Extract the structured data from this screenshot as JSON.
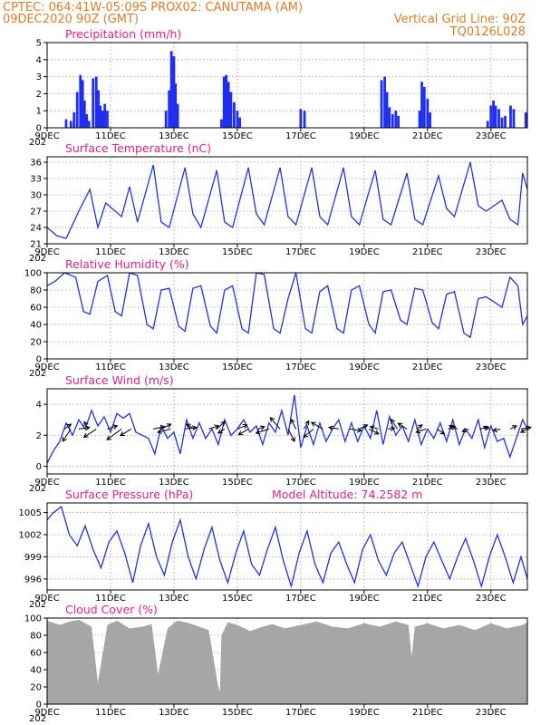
{
  "header": {
    "line1_left": "CPTEC:   064:41W-05:09S   PROX02: CANUTAMA (AM)",
    "line2_left": "09DEC2020 90Z (GMT)",
    "line2_right": "Vertical Grid Line: 90Z",
    "line3_right": "TQ0126L028"
  },
  "colors": {
    "header": "#e07b2c",
    "panel_title": "#e0228a",
    "series": "#2233dd",
    "precip_bar": "#1f2ef0",
    "cloud": "#a6a6a6"
  },
  "x_axis": {
    "day_start": 9,
    "day_end": 24.15,
    "tick_days": [
      9,
      11,
      13,
      15,
      17,
      19,
      21,
      23
    ],
    "tick_labels": [
      "9DEC",
      "11DEC",
      "13DEC",
      "15DEC",
      "17DEC",
      "19DEC",
      "21DEC",
      "23DEC"
    ],
    "year_label": "202"
  },
  "panels": {
    "precip": {
      "title": "Precipitation (mm/h)"
    },
    "temp": {
      "title": "Surface Temperature (nC)"
    },
    "rh": {
      "title": "Relative Humidity (%)"
    },
    "wind": {
      "title": "Surface Wind (m/s)"
    },
    "pres": {
      "title": "Surface Pressure (hPa)",
      "extra": "Model Altitude: 74.2582 m"
    },
    "cloud": {
      "title": "Cloud Cover (%)"
    }
  },
  "chart_data": [
    {
      "id": "precip",
      "type": "bar",
      "title": "Precipitation (mm/h)",
      "ylim": [
        0,
        5
      ],
      "yticks": [
        0,
        1,
        2,
        3,
        4,
        5
      ],
      "x_unit": "day of December 2020",
      "x": [
        9.6,
        9.75,
        9.85,
        9.95,
        10.05,
        10.12,
        10.18,
        10.25,
        10.32,
        10.45,
        10.55,
        10.62,
        10.68,
        10.75,
        10.82,
        10.9,
        12.75,
        12.85,
        12.92,
        13.0,
        13.05,
        13.12,
        14.5,
        14.58,
        14.65,
        14.72,
        14.8,
        14.9,
        15.0,
        15.08,
        17.0,
        17.12,
        19.55,
        19.65,
        19.72,
        19.8,
        19.9,
        20.0,
        20.08,
        20.75,
        20.82,
        20.9,
        21.0,
        21.08,
        22.9,
        23.0,
        23.08,
        23.15,
        23.25,
        23.35,
        23.45,
        23.62,
        23.72,
        24.1
      ],
      "values": [
        0.5,
        0.4,
        0.9,
        2.1,
        3.1,
        2.8,
        1.6,
        0.8,
        0.4,
        2.9,
        3.0,
        2.2,
        1.3,
        1.0,
        1.4,
        1.0,
        1.0,
        2.2,
        4.5,
        4.2,
        2.6,
        1.4,
        0.5,
        3.0,
        3.1,
        2.7,
        2.1,
        1.5,
        1.0,
        0.6,
        1.1,
        1.0,
        2.8,
        3.0,
        2.1,
        1.2,
        0.8,
        1.0,
        0.7,
        1.0,
        2.7,
        2.4,
        1.7,
        0.9,
        0.4,
        1.3,
        1.6,
        1.3,
        1.1,
        0.6,
        0.7,
        1.3,
        1.1,
        0.9
      ]
    },
    {
      "id": "temp",
      "type": "line",
      "title": "Surface Temperature (nC)",
      "ylim": [
        21,
        37
      ],
      "yticks": [
        21,
        24,
        27,
        30,
        33,
        36
      ],
      "x_unit": "day of December 2020",
      "x": [
        9.0,
        9.3,
        9.6,
        10.0,
        10.35,
        10.6,
        10.85,
        11.35,
        11.6,
        11.85,
        12.35,
        12.6,
        12.85,
        13.35,
        13.6,
        13.85,
        14.35,
        14.6,
        14.85,
        15.35,
        15.6,
        15.85,
        16.35,
        16.6,
        16.85,
        17.35,
        17.6,
        17.85,
        18.35,
        18.6,
        18.85,
        19.35,
        19.6,
        19.85,
        20.35,
        20.6,
        20.85,
        21.35,
        21.6,
        21.85,
        22.35,
        22.6,
        22.85,
        23.35,
        23.6,
        23.85,
        24.0,
        24.15
      ],
      "values": [
        24.0,
        22.5,
        22.0,
        27.0,
        31.0,
        24.0,
        28.5,
        26.0,
        31.5,
        25.0,
        35.5,
        25.0,
        24.0,
        35.0,
        26.5,
        24.0,
        34.5,
        25.0,
        24.0,
        35.0,
        26.5,
        24.5,
        35.0,
        26.0,
        24.5,
        35.0,
        26.0,
        24.5,
        35.0,
        26.0,
        24.5,
        34.5,
        25.5,
        24.5,
        34.0,
        25.5,
        24.5,
        33.5,
        27.5,
        26.0,
        36.0,
        28.0,
        27.0,
        29.0,
        25.5,
        24.5,
        34.0,
        31.0
      ]
    },
    {
      "id": "rh",
      "type": "line",
      "title": "Relative Humidity (%)",
      "ylim": [
        0,
        100
      ],
      "yticks": [
        0,
        20,
        40,
        60,
        80,
        100
      ],
      "x_unit": "day of December 2020",
      "x": [
        9.0,
        9.25,
        9.55,
        9.9,
        10.15,
        10.35,
        10.6,
        10.9,
        11.15,
        11.35,
        11.6,
        11.85,
        12.15,
        12.35,
        12.6,
        12.85,
        13.15,
        13.35,
        13.6,
        13.85,
        14.15,
        14.35,
        14.6,
        14.85,
        15.15,
        15.35,
        15.6,
        15.85,
        16.15,
        16.35,
        16.6,
        16.85,
        17.15,
        17.35,
        17.6,
        17.85,
        18.15,
        18.35,
        18.6,
        18.85,
        19.15,
        19.35,
        19.6,
        19.85,
        20.15,
        20.35,
        20.6,
        20.85,
        21.15,
        21.35,
        21.6,
        21.85,
        22.15,
        22.35,
        22.6,
        22.85,
        23.15,
        23.35,
        23.6,
        23.85,
        24.0,
        24.15
      ],
      "values": [
        85.0,
        90.0,
        100.0,
        95.0,
        55.0,
        52.0,
        90.0,
        97.0,
        55.0,
        50.0,
        100.0,
        97.0,
        40.0,
        35.0,
        80.0,
        82.0,
        38.0,
        32.0,
        82.0,
        85.0,
        38.0,
        30.0,
        80.0,
        85.0,
        35.0,
        30.0,
        100.0,
        98.0,
        35.0,
        30.0,
        70.0,
        100.0,
        35.0,
        30.0,
        78.0,
        85.0,
        35.0,
        30.0,
        80.0,
        85.0,
        40.0,
        30.0,
        78.0,
        80.0,
        45.0,
        40.0,
        82.0,
        80.0,
        42.0,
        35.0,
        75.0,
        78.0,
        30.0,
        25.0,
        70.0,
        72.0,
        65.0,
        60.0,
        95.0,
        85.0,
        40.0,
        50.0
      ]
    },
    {
      "id": "wind",
      "type": "line",
      "title": "Surface Wind (m/s)",
      "ylim": [
        -0.5,
        5
      ],
      "yticks": [
        0,
        2,
        4
      ],
      "x_unit": "day of December 2020",
      "x": [
        9.0,
        9.2,
        9.4,
        9.6,
        9.8,
        10.0,
        10.2,
        10.4,
        10.6,
        10.8,
        11.0,
        11.2,
        11.4,
        11.6,
        11.8,
        12.0,
        12.2,
        12.4,
        12.6,
        12.8,
        13.0,
        13.2,
        13.4,
        13.6,
        13.8,
        14.0,
        14.2,
        14.4,
        14.6,
        14.8,
        15.0,
        15.2,
        15.4,
        15.6,
        15.8,
        16.0,
        16.2,
        16.4,
        16.6,
        16.8,
        17.0,
        17.2,
        17.4,
        17.6,
        17.8,
        18.0,
        18.2,
        18.4,
        18.6,
        18.8,
        19.0,
        19.2,
        19.4,
        19.6,
        19.8,
        20.0,
        20.2,
        20.4,
        20.6,
        20.8,
        21.0,
        21.2,
        21.4,
        21.6,
        21.8,
        22.0,
        22.2,
        22.4,
        22.6,
        22.8,
        23.0,
        23.2,
        23.4,
        23.6,
        23.8,
        24.0,
        24.15
      ],
      "values": [
        0.2,
        1.0,
        1.6,
        2.8,
        2.0,
        3.0,
        2.4,
        3.6,
        2.6,
        3.2,
        2.2,
        3.4,
        3.1,
        3.4,
        2.2,
        2.0,
        1.8,
        0.8,
        2.6,
        1.8,
        2.2,
        0.8,
        3.0,
        1.8,
        2.8,
        1.8,
        2.4,
        1.4,
        3.0,
        2.0,
        2.4,
        3.0,
        2.2,
        2.6,
        1.4,
        2.8,
        2.2,
        3.6,
        2.0,
        4.6,
        1.2,
        2.6,
        1.4,
        2.8,
        1.6,
        2.4,
        3.0,
        1.6,
        2.8,
        1.6,
        2.6,
        1.8,
        3.6,
        1.4,
        3.2,
        2.0,
        2.6,
        1.6,
        3.0,
        1.4,
        2.4,
        1.8,
        2.8,
        1.6,
        3.0,
        1.4,
        2.4,
        1.8,
        3.0,
        1.2,
        2.6,
        1.6,
        1.8,
        0.6,
        1.8,
        3.0,
        2.4
      ],
      "arrows_day": [
        9.55,
        9.75,
        10.0,
        10.3,
        10.55,
        10.9,
        11.35,
        11.65,
        12.35,
        12.6,
        12.9,
        13.35,
        13.65,
        14.1,
        14.35,
        14.6,
        15.0,
        15.35,
        15.65,
        16.0,
        16.35,
        16.6,
        16.85,
        17.1,
        17.4,
        17.7,
        18.2,
        18.55,
        18.85,
        19.15,
        19.45,
        19.75,
        20.05,
        20.35,
        20.65,
        20.95,
        21.3,
        21.65,
        21.95,
        22.3,
        22.65,
        22.95,
        23.3,
        23.6,
        23.95,
        24.15
      ],
      "arrows_u": [
        0.8,
        -1.0,
        1.3,
        -0.5,
        -1.5,
        1.2,
        -1.8,
        -1.3,
        1.4,
        1.2,
        -1.6,
        1.4,
        -1.0,
        1.2,
        1.0,
        -0.8,
        1.2,
        -1.2,
        0.8,
        -1.6,
        -1.2,
        0.8,
        -0.6,
        0.6,
        -1.2,
        -1.4,
        -1.2,
        1.4,
        1.0,
        1.2,
        -1.0,
        0.8,
        -0.8,
        -1.1,
        0.7,
        -1.2,
        0.9,
        0.9,
        -1.0,
        -0.8,
        1.1,
        -0.7,
        -0.9,
        0.8,
        1.2,
        -0.8
      ],
      "arrows_v": [
        0.6,
        -1.5,
        0.2,
        0.9,
        -1.0,
        0.4,
        -1.3,
        -0.8,
        0.3,
        0.6,
        -0.4,
        0.2,
        0.6,
        0.4,
        0.9,
        -0.5,
        0.5,
        -0.7,
        0.3,
        -0.5,
        1.4,
        -1.5,
        1.2,
        1.0,
        -1.0,
        0.8,
        0.2,
        -0.2,
        0.5,
        -0.6,
        0.3,
        0.1,
        1.2,
        0.7,
        0.5,
        -0.4,
        -0.6,
        0.3,
        0.4,
        -0.3,
        0.2,
        0.3,
        -0.2,
        0.4,
        0.2,
        -0.4
      ]
    },
    {
      "id": "pres",
      "type": "line",
      "title": "Surface Pressure (hPa)",
      "ylim": [
        994.5,
        1006.3
      ],
      "yticks": [
        996,
        999,
        1002,
        1005
      ],
      "x_unit": "day of December 2020",
      "x": [
        9.0,
        9.2,
        9.45,
        9.7,
        9.95,
        10.2,
        10.45,
        10.7,
        10.95,
        11.2,
        11.45,
        11.7,
        11.95,
        12.2,
        12.45,
        12.7,
        12.95,
        13.2,
        13.45,
        13.7,
        13.95,
        14.2,
        14.45,
        14.7,
        14.95,
        15.2,
        15.45,
        15.7,
        15.95,
        16.2,
        16.45,
        16.7,
        16.95,
        17.2,
        17.45,
        17.7,
        17.95,
        18.2,
        18.45,
        18.7,
        18.95,
        19.2,
        19.45,
        19.7,
        19.95,
        20.2,
        20.45,
        20.7,
        20.95,
        21.2,
        21.45,
        21.7,
        21.95,
        22.2,
        22.45,
        22.7,
        22.95,
        23.2,
        23.45,
        23.7,
        23.95,
        24.15
      ],
      "values": [
        1004.0,
        1005.0,
        1005.8,
        1002.0,
        1000.5,
        1003.2,
        1000.0,
        997.5,
        1001.0,
        1002.5,
        999.5,
        995.5,
        1000.5,
        1003.5,
        999.0,
        996.5,
        1001.0,
        1004.0,
        999.0,
        996.0,
        1000.0,
        1003.0,
        998.5,
        995.5,
        999.5,
        1002.5,
        998.0,
        996.5,
        1000.0,
        1003.0,
        998.5,
        995.0,
        999.5,
        1002.5,
        998.0,
        995.5,
        999.5,
        1001.0,
        998.0,
        995.5,
        1000.0,
        1002.0,
        998.5,
        996.5,
        999.5,
        1001.0,
        998.0,
        995.0,
        999.0,
        1001.0,
        998.5,
        996.0,
        999.0,
        1001.5,
        998.5,
        995.0,
        999.0,
        1002.0,
        999.0,
        995.5,
        999.0,
        996.0
      ]
    },
    {
      "id": "cloud",
      "type": "area",
      "title": "Cloud Cover (%)",
      "ylim": [
        0,
        100
      ],
      "yticks": [
        0,
        20,
        40,
        60,
        80,
        100
      ],
      "x_unit": "day of December 2020",
      "x": [
        9.0,
        9.4,
        9.7,
        10.0,
        10.4,
        10.6,
        10.9,
        11.2,
        11.6,
        12.0,
        12.3,
        12.5,
        12.8,
        13.1,
        13.4,
        13.8,
        14.1,
        14.4,
        14.45,
        14.5,
        14.7,
        15.0,
        15.4,
        15.8,
        16.1,
        16.5,
        17.0,
        17.5,
        18.0,
        18.5,
        19.0,
        19.5,
        20.0,
        20.4,
        20.5,
        20.6,
        21.0,
        21.5,
        22.0,
        22.5,
        23.0,
        23.5,
        24.0,
        24.15
      ],
      "values": [
        97,
        92,
        96,
        98,
        90,
        25,
        92,
        97,
        88,
        90,
        93,
        35,
        88,
        97,
        95,
        90,
        86,
        20,
        15,
        80,
        95,
        92,
        85,
        90,
        93,
        88,
        92,
        96,
        90,
        88,
        94,
        90,
        96,
        92,
        55,
        90,
        94,
        88,
        92,
        86,
        94,
        88,
        92,
        95
      ]
    }
  ]
}
